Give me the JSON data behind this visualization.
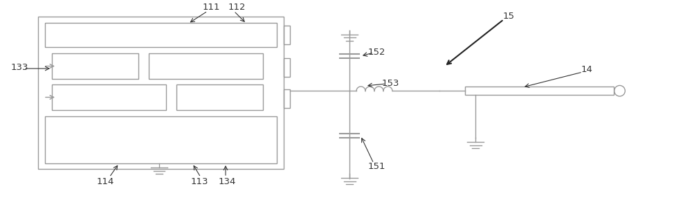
{
  "bg_color": "#ffffff",
  "line_color": "#999999",
  "text_color": "#333333",
  "fig_width": 10.0,
  "fig_height": 2.86,
  "dpi": 100
}
